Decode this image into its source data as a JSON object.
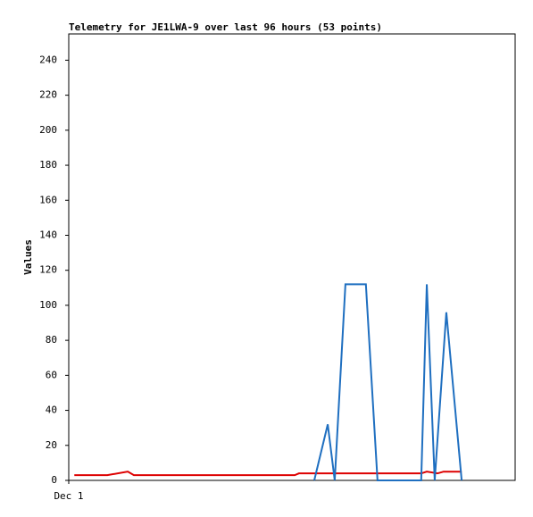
{
  "chart_data": {
    "type": "line",
    "title": "Telemetry for JE1LWA-9 over last 96 hours (53 points)",
    "y_label": "Values",
    "xlim": [
      0,
      96
    ],
    "xticks": [
      {
        "value": 0,
        "label": "Dec 1"
      }
    ],
    "ylim": [
      0,
      255
    ],
    "yticks": [
      0,
      20,
      40,
      60,
      80,
      100,
      120,
      140,
      160,
      180,
      200,
      220,
      240
    ],
    "grid": false,
    "series": [
      {
        "color": "#dd0000",
        "x": [
          1.2,
          8.3,
          12.7,
          14.0,
          48.6,
          49.5,
          75.8,
          77.0,
          79.3,
          80.6,
          84.5
        ],
        "values": [
          3,
          3,
          5,
          3,
          3,
          4,
          4,
          5,
          4,
          5,
          5
        ]
      },
      {
        "color": "#1f6fc0",
        "x": [
          52.8,
          55.7,
          57.2,
          59.5,
          63.9,
          66.4,
          75.8,
          77.0,
          78.7,
          81.2,
          84.5
        ],
        "values": [
          0,
          32,
          0,
          112,
          112,
          0,
          0,
          112,
          0,
          96,
          0
        ]
      }
    ]
  }
}
